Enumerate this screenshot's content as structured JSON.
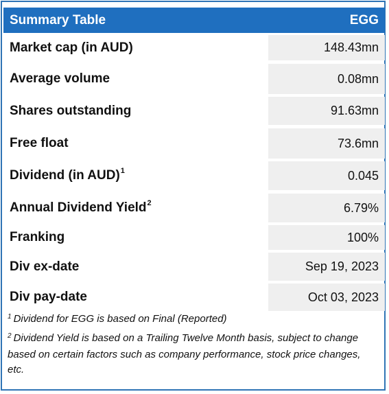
{
  "header": {
    "title": "Summary Table",
    "ticker": "EGG"
  },
  "rows": [
    {
      "label": "Market cap (in AUD)",
      "sup": "",
      "value": "148.43mn"
    },
    {
      "label": "Average volume",
      "sup": "",
      "value": "0.08mn"
    },
    {
      "label": "Shares outstanding",
      "sup": "",
      "value": "91.63mn"
    },
    {
      "label": "Free float",
      "sup": "",
      "value": "73.6mn"
    },
    {
      "label": "Dividend (in AUD)",
      "sup": "1",
      "value": "0.045"
    },
    {
      "label": "Annual Dividend Yield",
      "sup": "2",
      "value": "6.79%"
    },
    {
      "label": "Franking",
      "sup": "",
      "value": "100%"
    },
    {
      "label": "Div ex-date",
      "sup": "",
      "value": "Sep 19, 2023"
    },
    {
      "label": "Div pay-date",
      "sup": "",
      "value": "Oct 03, 2023"
    }
  ],
  "footnotes": [
    {
      "marker": "1",
      "text": "Dividend for EGG is based on Final (Reported)"
    },
    {
      "marker": "2",
      "text": "Dividend Yield is based on a Trailing Twelve Month basis, subject to change based on certain factors such as company performance, stock price changes, etc."
    }
  ],
  "colors": {
    "header_bg": "#1f6fbf",
    "border": "#2f74b5",
    "value_bg": "#efefef"
  }
}
